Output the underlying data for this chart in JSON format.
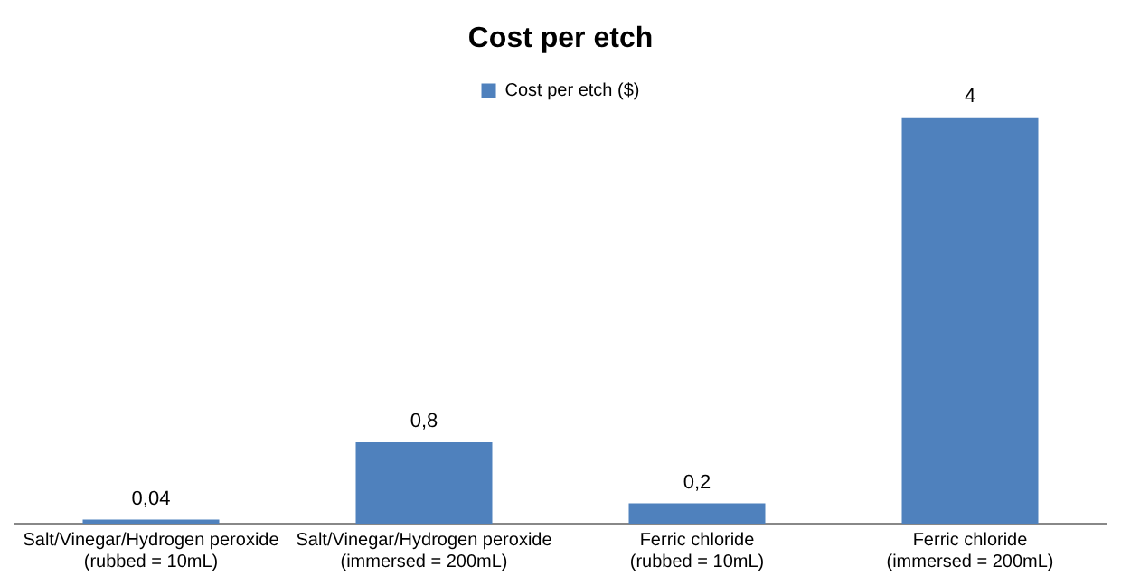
{
  "chart_data": {
    "type": "bar",
    "title": "Cost per etch",
    "categories": [
      "Salt/Vinegar/Hydrogen peroxide (rubbed = 10mL)",
      "Salt/Vinegar/Hydrogen peroxide (immersed = 200mL)",
      "Ferric chloride (rubbed = 10mL)",
      "Ferric chloride (immersed = 200mL)"
    ],
    "series": [
      {
        "name": "Cost per etch ($)",
        "color": "#4f81bd",
        "values": [
          0.04,
          0.8,
          0.2,
          4
        ],
        "value_labels": [
          "0,04",
          "0,8",
          "0,2",
          "4"
        ]
      }
    ],
    "legend": "top",
    "grid": false
  }
}
